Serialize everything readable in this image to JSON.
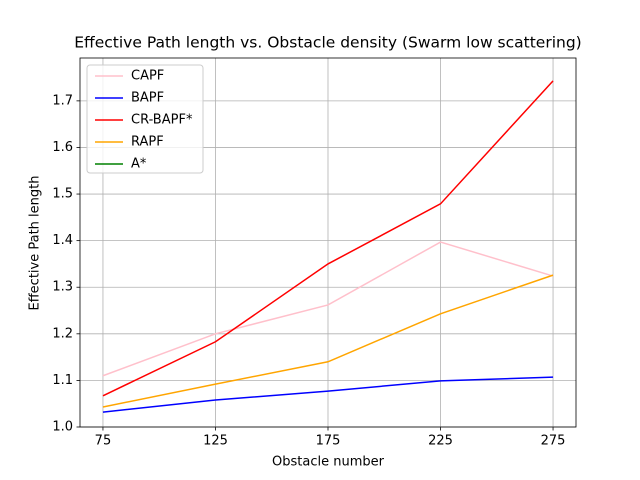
{
  "chart_data": {
    "type": "line",
    "title": "Effective Path length vs. Obstacle density (Swarm low scattering)",
    "xlabel": "Obstacle number",
    "ylabel": "Effective Path length",
    "x": [
      75,
      125,
      175,
      225,
      275
    ],
    "series": [
      {
        "name": "CAPF",
        "color": "pink",
        "values": [
          1.11,
          1.2,
          1.262,
          1.397,
          1.324
        ]
      },
      {
        "name": "BAPF",
        "color": "blue",
        "values": [
          1.032,
          1.058,
          1.077,
          1.099,
          1.107
        ]
      },
      {
        "name": "CR-BAPF*",
        "color": "red",
        "values": [
          1.067,
          1.183,
          1.35,
          1.479,
          1.743
        ]
      },
      {
        "name": "RAPF",
        "color": "orange",
        "values": [
          1.043,
          1.092,
          1.14,
          1.243,
          1.326
        ]
      },
      {
        "name": "A*",
        "color": "green",
        "values": [
          null,
          null,
          null,
          null,
          null
        ]
      }
    ],
    "xlim": [
      64.8,
      285.2
    ],
    "xticks": [
      75,
      125,
      175,
      225,
      275
    ],
    "ylim": [
      1.0,
      1.792
    ],
    "yticks": [
      {
        "value": 1.0,
        "label": "1.0"
      },
      1.1,
      1.2,
      1.3,
      1.4,
      1.5,
      1.6,
      1.7
    ],
    "grid": true,
    "legend": "upper left"
  }
}
